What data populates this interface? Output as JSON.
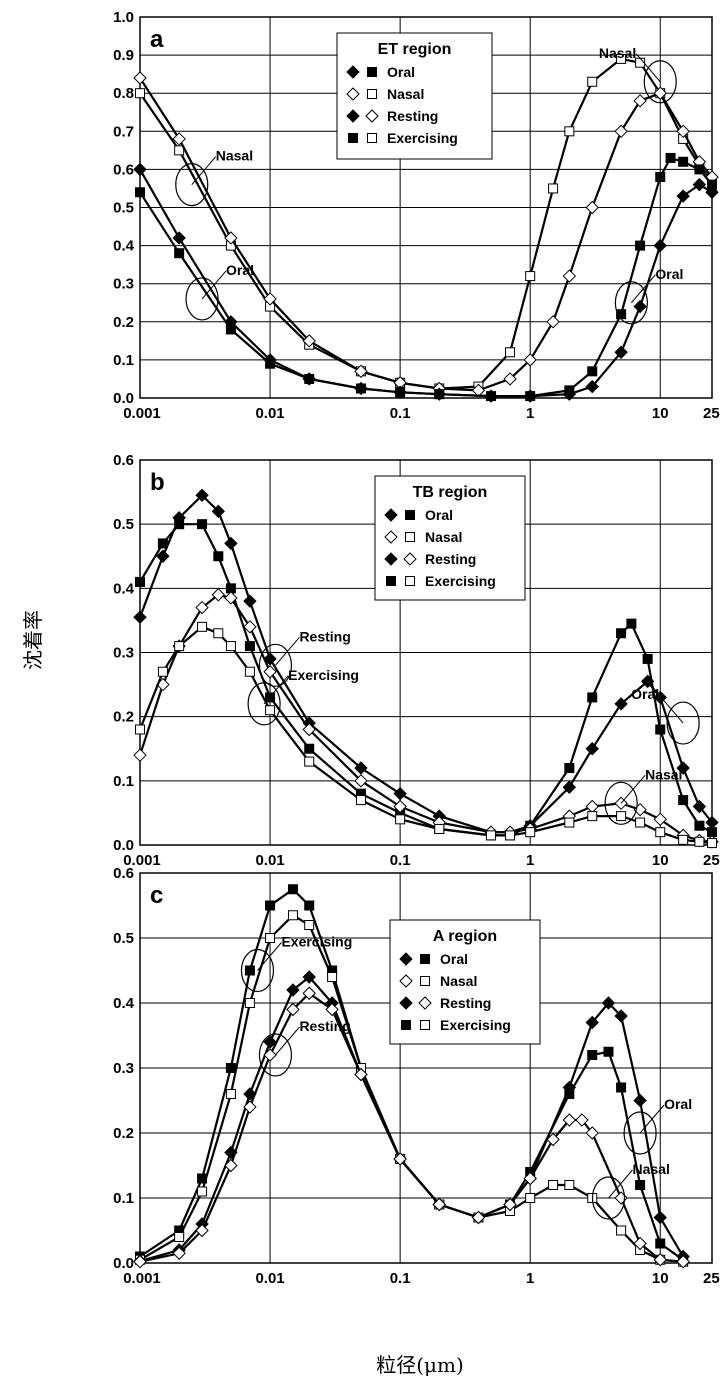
{
  "ylabel": "沈着率",
  "xlabel": "粒径(μm)",
  "chart_data": [
    {
      "type": "line",
      "panel": "a",
      "xscale": "log",
      "xlim": [
        0.001,
        25
      ],
      "ylim": [
        0,
        1.0
      ],
      "xticks": [
        "0.001",
        "0.01",
        "0.1",
        "1",
        "10",
        "25"
      ],
      "yticks": [
        "0.0",
        "0.1",
        "0.2",
        "0.3",
        "0.4",
        "0.5",
        "0.6",
        "0.7",
        "0.8",
        "0.9",
        "1.0"
      ],
      "legend": {
        "title": "ET region",
        "position": "top-center",
        "entries": [
          {
            "markers": [
              "filled-diamond",
              "filled-square"
            ],
            "label": "Oral"
          },
          {
            "markers": [
              "open-diamond",
              "open-square"
            ],
            "label": "Nasal"
          },
          {
            "markers": [
              "filled-diamond",
              "open-diamond"
            ],
            "label": "Resting"
          },
          {
            "markers": [
              "filled-square",
              "open-square"
            ],
            "label": "Exercising"
          }
        ]
      },
      "annotations": [
        {
          "text": "Nasal",
          "x": 0.0025,
          "y": 0.56
        },
        {
          "text": "Oral",
          "x": 0.003,
          "y": 0.26
        },
        {
          "text": "Nasal",
          "x": 10,
          "y": 0.83
        },
        {
          "text": "Oral",
          "x": 6,
          "y": 0.25
        }
      ],
      "series": [
        {
          "marker": "open-square",
          "x": [
            0.001,
            0.002,
            0.005,
            0.01,
            0.02,
            0.05,
            0.1,
            0.2,
            0.4,
            0.7,
            1,
            1.5,
            2,
            3,
            5,
            7,
            10,
            15,
            20,
            25
          ],
          "y": [
            0.8,
            0.65,
            0.4,
            0.24,
            0.14,
            0.07,
            0.04,
            0.025,
            0.03,
            0.12,
            0.32,
            0.55,
            0.7,
            0.83,
            0.89,
            0.88,
            0.8,
            0.68,
            0.61,
            0.57
          ]
        },
        {
          "marker": "open-diamond",
          "x": [
            0.001,
            0.002,
            0.005,
            0.01,
            0.02,
            0.05,
            0.1,
            0.2,
            0.4,
            0.7,
            1,
            1.5,
            2,
            3,
            5,
            7,
            10,
            15,
            20,
            25
          ],
          "y": [
            0.84,
            0.68,
            0.42,
            0.26,
            0.15,
            0.07,
            0.04,
            0.025,
            0.02,
            0.05,
            0.1,
            0.2,
            0.32,
            0.5,
            0.7,
            0.78,
            0.8,
            0.7,
            0.62,
            0.58
          ]
        },
        {
          "marker": "filled-square",
          "x": [
            0.001,
            0.002,
            0.005,
            0.01,
            0.02,
            0.05,
            0.1,
            0.2,
            0.5,
            1,
            2,
            3,
            5,
            7,
            10,
            12,
            15,
            20,
            25
          ],
          "y": [
            0.54,
            0.38,
            0.18,
            0.09,
            0.05,
            0.025,
            0.015,
            0.01,
            0.005,
            0.005,
            0.02,
            0.07,
            0.22,
            0.4,
            0.58,
            0.63,
            0.62,
            0.6,
            0.56
          ]
        },
        {
          "marker": "filled-diamond",
          "x": [
            0.001,
            0.002,
            0.005,
            0.01,
            0.02,
            0.05,
            0.1,
            0.2,
            0.5,
            1,
            2,
            3,
            5,
            7,
            10,
            15,
            20,
            25
          ],
          "y": [
            0.6,
            0.42,
            0.2,
            0.1,
            0.05,
            0.025,
            0.015,
            0.01,
            0.005,
            0.005,
            0.01,
            0.03,
            0.12,
            0.24,
            0.4,
            0.53,
            0.56,
            0.54
          ]
        }
      ]
    },
    {
      "type": "line",
      "panel": "b",
      "xscale": "log",
      "xlim": [
        0.001,
        25
      ],
      "ylim": [
        0,
        0.6
      ],
      "xticks": [
        "0.001",
        "0.01",
        "0.1",
        "1",
        "10",
        "25"
      ],
      "yticks": [
        "0.0",
        "0.1",
        "0.2",
        "0.3",
        "0.4",
        "0.5",
        "0.6"
      ],
      "legend": {
        "title": "TB region",
        "position": "top-center",
        "entries": [
          {
            "markers": [
              "filled-diamond",
              "filled-square"
            ],
            "label": "Oral"
          },
          {
            "markers": [
              "open-diamond",
              "open-square"
            ],
            "label": "Nasal"
          },
          {
            "markers": [
              "filled-diamond",
              "open-diamond"
            ],
            "label": "Resting"
          },
          {
            "markers": [
              "filled-square",
              "open-square"
            ],
            "label": "Exercising"
          }
        ]
      },
      "annotations": [
        {
          "text": "Resting",
          "x": 0.011,
          "y": 0.28
        },
        {
          "text": "Exercising",
          "x": 0.009,
          "y": 0.22
        },
        {
          "text": "Oral",
          "x": 15,
          "y": 0.19
        },
        {
          "text": "Nasal",
          "x": 5,
          "y": 0.065
        }
      ],
      "series": [
        {
          "marker": "filled-diamond",
          "x": [
            0.001,
            0.0015,
            0.002,
            0.003,
            0.004,
            0.005,
            0.007,
            0.01,
            0.02,
            0.05,
            0.1,
            0.2,
            0.5,
            0.7,
            1,
            2,
            3,
            5,
            8,
            10,
            15,
            20,
            25
          ],
          "y": [
            0.355,
            0.45,
            0.51,
            0.545,
            0.52,
            0.47,
            0.38,
            0.29,
            0.19,
            0.12,
            0.08,
            0.045,
            0.02,
            0.02,
            0.03,
            0.09,
            0.15,
            0.22,
            0.255,
            0.23,
            0.12,
            0.06,
            0.035
          ]
        },
        {
          "marker": "filled-square",
          "x": [
            0.001,
            0.0015,
            0.002,
            0.003,
            0.004,
            0.005,
            0.007,
            0.01,
            0.02,
            0.05,
            0.1,
            0.2,
            0.5,
            0.7,
            1,
            2,
            3,
            5,
            6,
            8,
            10,
            15,
            20,
            25
          ],
          "y": [
            0.41,
            0.47,
            0.5,
            0.5,
            0.45,
            0.4,
            0.31,
            0.23,
            0.15,
            0.08,
            0.05,
            0.025,
            0.015,
            0.015,
            0.03,
            0.12,
            0.23,
            0.33,
            0.345,
            0.29,
            0.18,
            0.07,
            0.03,
            0.02
          ]
        },
        {
          "marker": "open-diamond",
          "x": [
            0.001,
            0.0015,
            0.002,
            0.003,
            0.004,
            0.005,
            0.007,
            0.01,
            0.02,
            0.05,
            0.1,
            0.2,
            0.5,
            0.7,
            1,
            2,
            3,
            5,
            7,
            10,
            15,
            20,
            25
          ],
          "y": [
            0.14,
            0.25,
            0.31,
            0.37,
            0.39,
            0.385,
            0.34,
            0.27,
            0.18,
            0.1,
            0.06,
            0.035,
            0.02,
            0.02,
            0.025,
            0.045,
            0.06,
            0.065,
            0.055,
            0.04,
            0.015,
            0.007,
            0.005
          ]
        },
        {
          "marker": "open-square",
          "x": [
            0.001,
            0.0015,
            0.002,
            0.003,
            0.004,
            0.005,
            0.007,
            0.01,
            0.02,
            0.05,
            0.1,
            0.2,
            0.5,
            0.7,
            1,
            2,
            3,
            5,
            7,
            10,
            15,
            20,
            25
          ],
          "y": [
            0.18,
            0.27,
            0.31,
            0.34,
            0.33,
            0.31,
            0.27,
            0.21,
            0.13,
            0.07,
            0.04,
            0.025,
            0.015,
            0.015,
            0.02,
            0.035,
            0.045,
            0.045,
            0.035,
            0.02,
            0.008,
            0.005,
            0.003
          ]
        }
      ]
    },
    {
      "type": "line",
      "panel": "c",
      "xscale": "log",
      "xlim": [
        0.001,
        25
      ],
      "ylim": [
        0,
        0.6
      ],
      "xticks": [
        "0.001",
        "0.01",
        "0.1",
        "1",
        "10",
        "25"
      ],
      "yticks": [
        "0.0",
        "0.1",
        "0.2",
        "0.3",
        "0.4",
        "0.5",
        "0.6"
      ],
      "legend": {
        "title": "A region",
        "position": "top-right",
        "entries": [
          {
            "markers": [
              "filled-diamond",
              "filled-square"
            ],
            "label": "Oral"
          },
          {
            "markers": [
              "open-diamond",
              "open-square"
            ],
            "label": "Nasal"
          },
          {
            "markers": [
              "filled-diamond",
              "open-diamond"
            ],
            "label": "Resting"
          },
          {
            "markers": [
              "filled-square",
              "open-square"
            ],
            "label": "Exercising"
          }
        ]
      },
      "annotations": [
        {
          "text": "Exercising",
          "x": 0.008,
          "y": 0.45
        },
        {
          "text": "Resting",
          "x": 0.011,
          "y": 0.32
        },
        {
          "text": "Oral",
          "x": 7,
          "y": 0.2
        },
        {
          "text": "Nasal",
          "x": 4,
          "y": 0.1
        }
      ],
      "series": [
        {
          "marker": "filled-square",
          "x": [
            0.001,
            0.002,
            0.003,
            0.005,
            0.007,
            0.01,
            0.015,
            0.02,
            0.03,
            0.05,
            0.1,
            0.2,
            0.4,
            0.7,
            1,
            2,
            3,
            4,
            5,
            7,
            10,
            15
          ],
          "y": [
            0.01,
            0.05,
            0.13,
            0.3,
            0.45,
            0.55,
            0.575,
            0.55,
            0.45,
            0.3,
            0.16,
            0.09,
            0.07,
            0.09,
            0.14,
            0.26,
            0.32,
            0.325,
            0.27,
            0.12,
            0.03,
            0.005
          ]
        },
        {
          "marker": "open-square",
          "x": [
            0.001,
            0.002,
            0.003,
            0.005,
            0.007,
            0.01,
            0.015,
            0.02,
            0.03,
            0.05,
            0.1,
            0.2,
            0.4,
            0.7,
            1,
            1.5,
            2,
            3,
            5,
            7,
            10,
            15
          ],
          "y": [
            0.005,
            0.04,
            0.11,
            0.26,
            0.4,
            0.5,
            0.535,
            0.52,
            0.44,
            0.3,
            0.16,
            0.09,
            0.07,
            0.08,
            0.1,
            0.12,
            0.12,
            0.1,
            0.05,
            0.02,
            0.005,
            0.002
          ]
        },
        {
          "marker": "filled-diamond",
          "x": [
            0.001,
            0.002,
            0.003,
            0.005,
            0.007,
            0.01,
            0.015,
            0.02,
            0.03,
            0.05,
            0.1,
            0.2,
            0.4,
            0.7,
            1,
            2,
            3,
            4,
            5,
            7,
            10,
            15
          ],
          "y": [
            0.003,
            0.02,
            0.06,
            0.17,
            0.26,
            0.34,
            0.42,
            0.44,
            0.4,
            0.29,
            0.16,
            0.09,
            0.07,
            0.09,
            0.13,
            0.27,
            0.37,
            0.4,
            0.38,
            0.25,
            0.07,
            0.01
          ]
        },
        {
          "marker": "open-diamond",
          "x": [
            0.001,
            0.002,
            0.003,
            0.005,
            0.007,
            0.01,
            0.015,
            0.02,
            0.03,
            0.05,
            0.1,
            0.2,
            0.4,
            0.7,
            1,
            1.5,
            2,
            2.5,
            3,
            5,
            7,
            10,
            15
          ],
          "y": [
            0.002,
            0.015,
            0.05,
            0.15,
            0.24,
            0.32,
            0.39,
            0.415,
            0.39,
            0.29,
            0.16,
            0.09,
            0.07,
            0.09,
            0.13,
            0.19,
            0.22,
            0.22,
            0.2,
            0.1,
            0.03,
            0.005,
            0.002
          ]
        }
      ]
    }
  ]
}
